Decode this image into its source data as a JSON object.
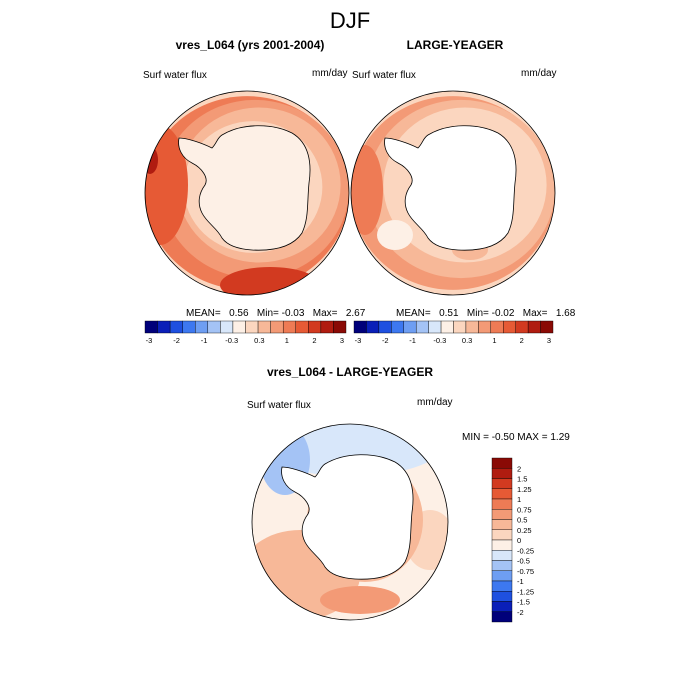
{
  "page": {
    "title": "DJF"
  },
  "panels": [
    {
      "id": "left",
      "title": "vres_L064 (yrs 2001-2004)",
      "left_label": "Surf water flux",
      "right_label": "mm/day",
      "stats": {
        "mean_label": "MEAN=",
        "mean": "0.56",
        "min_label": "Min=",
        "min": "-0.03",
        "max_label": "Max=",
        "max": "2.67"
      }
    },
    {
      "id": "right",
      "title": "LARGE-YEAGER",
      "left_label": "Surf water flux",
      "right_label": "mm/day",
      "stats": {
        "mean_label": "MEAN=",
        "mean": "0.51",
        "min_label": "Min=",
        "min": "-0.02",
        "max_label": "Max=",
        "max": "1.68"
      }
    },
    {
      "id": "diff",
      "title": "vres_L064 - LARGE-YEAGER",
      "left_label": "Surf water flux",
      "right_label": "mm/day",
      "stats_text": "MIN = -0.50 MAX =   1.29"
    }
  ],
  "colorbar_top": {
    "colors": [
      "#00007a",
      "#0a1fb8",
      "#1e50e0",
      "#3d78f0",
      "#6e9ef2",
      "#a4c3f5",
      "#d8e7fa",
      "#fdf0e6",
      "#fbd6bf",
      "#f7b898",
      "#f39a76",
      "#ee7b55",
      "#e65a35",
      "#d23a20",
      "#b01c10",
      "#8a0a05"
    ],
    "labels": [
      "-3",
      "-2",
      "-1",
      "-0.3",
      "0.3",
      "1",
      "2",
      "3"
    ]
  },
  "colorbar_diff": {
    "colors": [
      "#8a0a05",
      "#b01c10",
      "#d23a20",
      "#e65a35",
      "#ee7b55",
      "#f39a76",
      "#f7b898",
      "#fbd6bf",
      "#fdf0e6",
      "#d8e7fa",
      "#a4c3f5",
      "#6e9ef2",
      "#3d78f0",
      "#1e50e0",
      "#0a1fb8",
      "#00007a"
    ],
    "labels": [
      "2",
      "1.5",
      "1.25",
      "1",
      "0.75",
      "0.5",
      "0.25",
      "0",
      "-0.25",
      "-0.5",
      "-0.75",
      "-1",
      "-1.25",
      "-1.5",
      "-2"
    ]
  },
  "fields": {
    "left": {
      "levels": [
        0.1,
        0.45,
        0.8,
        1.2,
        1.6,
        2.2
      ],
      "field_min": -0.03,
      "field_max": 2.67,
      "antarctica_fill": "#fdf0e6"
    },
    "right": {
      "levels": [
        0.1,
        0.4,
        0.7,
        1.0,
        1.3,
        1.6
      ],
      "field_min": -0.02,
      "field_max": 1.68,
      "antarctica_fill": "#ffffff"
    },
    "diff": {
      "field_min": -0.5,
      "field_max": 1.29,
      "antarctica_fill": "#ffffff"
    }
  }
}
